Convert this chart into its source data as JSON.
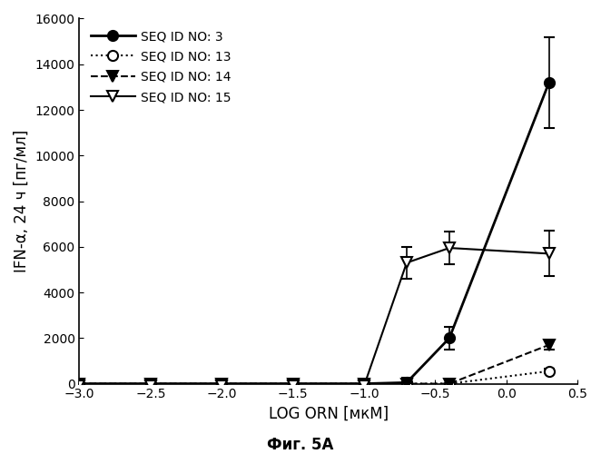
{
  "title": "",
  "xlabel": "LOG ORN [мкМ]",
  "ylabel": "IFN-α, 24 ч [пг/мл]",
  "caption": "Фиг. 5А",
  "xlim": [
    -3.0,
    0.5
  ],
  "ylim": [
    0,
    16000
  ],
  "yticks": [
    0,
    2000,
    4000,
    6000,
    8000,
    10000,
    12000,
    14000,
    16000
  ],
  "xticks": [
    -3.0,
    -2.5,
    -2.0,
    -1.5,
    -1.0,
    -0.5,
    0.0,
    0.5
  ],
  "series": [
    {
      "label": "SEQ ID NO: 3",
      "x": [
        -3.0,
        -2.5,
        -2.0,
        -1.5,
        -1.0,
        -0.7,
        -0.4,
        0.3
      ],
      "y": [
        0,
        0,
        0,
        0,
        0,
        50,
        2000,
        13200
      ],
      "yerr": [
        0,
        0,
        0,
        0,
        0,
        200,
        500,
        2000
      ],
      "color": "#000000",
      "linestyle": "-",
      "marker": "o",
      "markersize": 8,
      "fillstyle": "full",
      "linewidth": 2.0
    },
    {
      "label": "SEQ ID NO: 13",
      "x": [
        -3.0,
        -2.5,
        -2.0,
        -1.5,
        -1.0,
        -0.7,
        -0.4,
        0.3
      ],
      "y": [
        0,
        0,
        0,
        0,
        0,
        0,
        0,
        550
      ],
      "yerr": [
        0,
        0,
        0,
        0,
        0,
        0,
        0,
        100
      ],
      "color": "#000000",
      "linestyle": ":",
      "marker": "o",
      "markersize": 8,
      "fillstyle": "none",
      "linewidth": 1.5
    },
    {
      "label": "SEQ ID NO: 14",
      "x": [
        -3.0,
        -2.5,
        -2.0,
        -1.5,
        -1.0,
        -0.7,
        -0.4,
        0.3
      ],
      "y": [
        0,
        0,
        0,
        0,
        0,
        0,
        0,
        1700
      ],
      "yerr": [
        0,
        0,
        0,
        0,
        0,
        0,
        0,
        200
      ],
      "color": "#000000",
      "linestyle": "--",
      "marker": "v",
      "markersize": 8,
      "fillstyle": "full",
      "linewidth": 1.5
    },
    {
      "label": "SEQ ID NO: 15",
      "x": [
        -3.0,
        -2.5,
        -2.0,
        -1.5,
        -1.0,
        -0.7,
        -0.4,
        0.3
      ],
      "y": [
        -100,
        -100,
        -100,
        -100,
        -100,
        5300,
        5950,
        5700
      ],
      "yerr": [
        50,
        50,
        50,
        50,
        50,
        700,
        700,
        1000
      ],
      "color": "#000000",
      "linestyle": "-",
      "marker": "v",
      "markersize": 8,
      "fillstyle": "none",
      "linewidth": 1.5
    }
  ]
}
